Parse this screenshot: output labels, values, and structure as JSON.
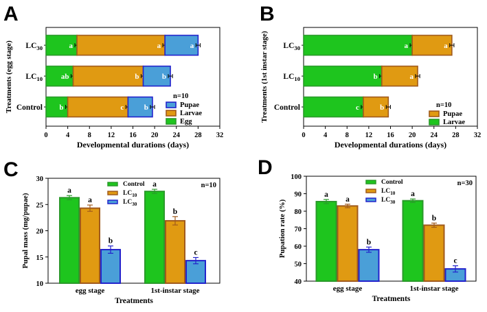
{
  "panels": [
    {
      "letter": "A",
      "chart_data": {
        "type": "bar",
        "orientation": "horizontal",
        "stacked": true,
        "xlabel": "Developmental durations (days)",
        "ylabel": "Treatments (egg stage)",
        "xlim": [
          0,
          32
        ],
        "xticks": [
          "0",
          "4",
          "8",
          "12",
          "16",
          "20",
          "24",
          "28",
          "32"
        ],
        "categories": [
          {
            "name": "Control",
            "sub": ""
          },
          {
            "name": "LC",
            "sub": "10"
          },
          {
            "name": "LC",
            "sub": "30"
          }
        ],
        "series": [
          {
            "name": "Egg",
            "color": "#1ec51e",
            "edge": "#2a9a2a",
            "values": [
              4.0,
              5.0,
              5.7
            ],
            "errors": [
              0.2,
              0.2,
              0.2
            ],
            "letters": [
              "b",
              "ab",
              "a"
            ]
          },
          {
            "name": "Larvae",
            "color": "#e09a12",
            "edge": "#a05a1c",
            "values": [
              11.1,
              12.9,
              16.2
            ],
            "errors": [
              0.2,
              0.2,
              0.2
            ],
            "letters": [
              "c",
              "b",
              "a"
            ]
          },
          {
            "name": "Pupae",
            "color": "#4a9fd8",
            "edge": "#2222cc",
            "values": [
              4.5,
              5.0,
              6.1
            ],
            "errors": [
              0.2,
              0.2,
              0.2
            ],
            "letters": [
              "b",
              "b",
              "a"
            ]
          }
        ],
        "legend_order": [
          "Pupae",
          "Larvae",
          "Egg"
        ],
        "annotation": "n=10",
        "legend_position": "bottom-right"
      }
    },
    {
      "letter": "B",
      "chart_data": {
        "type": "bar",
        "orientation": "horizontal",
        "stacked": true,
        "xlabel": "Developmental durations (days)",
        "ylabel": "Treatments (1st instar stage)",
        "xlim": [
          0,
          32
        ],
        "xticks": [
          "0",
          "4",
          "8",
          "12",
          "16",
          "20",
          "24",
          "28",
          "32"
        ],
        "categories": [
          {
            "name": "Control",
            "sub": ""
          },
          {
            "name": "LC",
            "sub": "10"
          },
          {
            "name": "LC",
            "sub": "30"
          }
        ],
        "series": [
          {
            "name": "Larvae",
            "color": "#1ec51e",
            "edge": "#2a9a2a",
            "values": [
              11.0,
              14.4,
              20.0
            ],
            "errors": [
              0.2,
              0.2,
              0.2
            ],
            "letters": [
              "c",
              "b",
              "a"
            ]
          },
          {
            "name": "Pupae",
            "color": "#e09a12",
            "edge": "#a05a1c",
            "values": [
              4.6,
              6.6,
              7.3
            ],
            "errors": [
              0.2,
              0.2,
              0.2
            ],
            "letters": [
              "b",
              "a",
              "a"
            ]
          }
        ],
        "legend_order": [
          "Pupae",
          "Larvae"
        ],
        "annotation": "n=10",
        "legend_position": "bottom-right"
      }
    },
    {
      "letter": "C",
      "chart_data": {
        "type": "bar",
        "orientation": "vertical",
        "xlabel": "Treatments",
        "ylabel": "Pupal mass (mg/pupae)",
        "ylim": [
          10,
          30
        ],
        "yticks": [
          "10",
          "15",
          "20",
          "25",
          "30"
        ],
        "categories": [
          "egg stage",
          "1st-instar stage"
        ],
        "series": [
          {
            "name": "Control",
            "sub": "",
            "color": "#1ec51e",
            "edge": "#2a9a2a",
            "values": [
              26.3,
              27.5
            ],
            "errors": [
              0.4,
              0.4
            ],
            "letters": [
              "a",
              "a"
            ]
          },
          {
            "name": "LC",
            "sub": "10",
            "color": "#e09a12",
            "edge": "#a05a1c",
            "values": [
              24.3,
              21.9
            ],
            "errors": [
              0.6,
              0.8
            ],
            "letters": [
              "a",
              "b"
            ]
          },
          {
            "name": "LC",
            "sub": "30",
            "color": "#4a9fd8",
            "edge": "#2222cc",
            "values": [
              16.4,
              14.3
            ],
            "errors": [
              0.7,
              0.6
            ],
            "letters": [
              "b",
              "c"
            ]
          }
        ],
        "annotation": "n=10",
        "legend_position": "top-left"
      }
    },
    {
      "letter": "D",
      "chart_data": {
        "type": "bar",
        "orientation": "vertical",
        "xlabel": "Treatments",
        "ylabel": "Pupation rate (%)",
        "ylim": [
          40,
          100
        ],
        "yticks": [
          "40",
          "50",
          "60",
          "70",
          "80",
          "90",
          "100"
        ],
        "categories": [
          "egg stage",
          "1st-instar stage"
        ],
        "series": [
          {
            "name": "Control",
            "sub": "",
            "color": "#1ec51e",
            "edge": "#2a9a2a",
            "values": [
              85.5,
              86.0
            ],
            "errors": [
              1.2,
              1.0
            ],
            "letters": [
              "a",
              "a"
            ]
          },
          {
            "name": "LC",
            "sub": "10",
            "color": "#e09a12",
            "edge": "#a05a1c",
            "values": [
              83.0,
              72.0
            ],
            "errors": [
              1.0,
              1.2
            ],
            "letters": [
              "a",
              "b"
            ]
          },
          {
            "name": "LC",
            "sub": "30",
            "color": "#4a9fd8",
            "edge": "#2222cc",
            "values": [
              58.0,
              47.0
            ],
            "errors": [
              1.5,
              1.8
            ],
            "letters": [
              "b",
              "c"
            ]
          }
        ],
        "annotation": "n=30",
        "legend_position": "top-left"
      }
    }
  ]
}
